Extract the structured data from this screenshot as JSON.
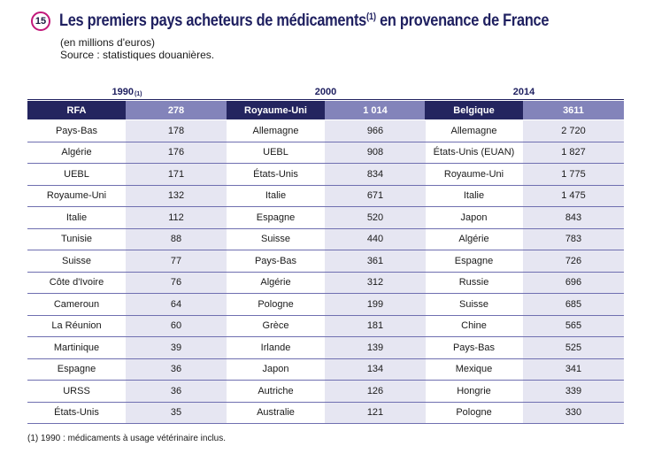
{
  "badge": "15",
  "title": {
    "main": "Les premiers pays acheteurs de médicaments",
    "sup": "(1)",
    "rest": " en provenance de France"
  },
  "subtitle": {
    "line1": "(en millions d'euros)",
    "line2": "Source : statistiques douanières."
  },
  "tables": [
    {
      "year": "1990",
      "year_sup": "(1)",
      "head": {
        "country": "RFA",
        "value": "278"
      },
      "rows": [
        {
          "country": "Pays-Bas",
          "value": "178"
        },
        {
          "country": "Algérie",
          "value": "176"
        },
        {
          "country": "UEBL",
          "value": "171"
        },
        {
          "country": "Royaume-Uni",
          "value": "132"
        },
        {
          "country": "Italie",
          "value": "112"
        },
        {
          "country": "Tunisie",
          "value": "88"
        },
        {
          "country": "Suisse",
          "value": "77"
        },
        {
          "country": "Côte d'Ivoire",
          "value": "76"
        },
        {
          "country": "Cameroun",
          "value": "64"
        },
        {
          "country": "La Réunion",
          "value": "60"
        },
        {
          "country": "Martinique",
          "value": "39"
        },
        {
          "country": "Espagne",
          "value": "36"
        },
        {
          "country": "URSS",
          "value": "36"
        },
        {
          "country": "États-Unis",
          "value": "35"
        }
      ]
    },
    {
      "year": "2000",
      "year_sup": "",
      "head": {
        "country": "Royaume-Uni",
        "value": "1 014"
      },
      "rows": [
        {
          "country": "Allemagne",
          "value": "966"
        },
        {
          "country": "UEBL",
          "value": "908"
        },
        {
          "country": "États-Unis",
          "value": "834"
        },
        {
          "country": "Italie",
          "value": "671"
        },
        {
          "country": "Espagne",
          "value": "520"
        },
        {
          "country": "Suisse",
          "value": "440"
        },
        {
          "country": "Pays-Bas",
          "value": "361"
        },
        {
          "country": "Algérie",
          "value": "312"
        },
        {
          "country": "Pologne",
          "value": "199"
        },
        {
          "country": "Grèce",
          "value": "181"
        },
        {
          "country": "Irlande",
          "value": "139"
        },
        {
          "country": "Japon",
          "value": "134"
        },
        {
          "country": "Autriche",
          "value": "126"
        },
        {
          "country": "Australie",
          "value": "121"
        }
      ]
    },
    {
      "year": "2014",
      "year_sup": "",
      "head": {
        "country": "Belgique",
        "value": "3611"
      },
      "rows": [
        {
          "country": "Allemagne",
          "value": "2 720"
        },
        {
          "country": "États-Unis (EUAN)",
          "value": "1 827"
        },
        {
          "country": "Royaume-Uni",
          "value": "1 775"
        },
        {
          "country": "Italie",
          "value": "1 475"
        },
        {
          "country": "Japon",
          "value": "843"
        },
        {
          "country": "Algérie",
          "value": "783"
        },
        {
          "country": "Espagne",
          "value": "726"
        },
        {
          "country": "Russie",
          "value": "696"
        },
        {
          "country": "Suisse",
          "value": "685"
        },
        {
          "country": "Chine",
          "value": "565"
        },
        {
          "country": "Pays-Bas",
          "value": "525"
        },
        {
          "country": "Mexique",
          "value": "341"
        },
        {
          "country": "Hongrie",
          "value": "339"
        },
        {
          "country": "Pologne",
          "value": "330"
        }
      ]
    }
  ],
  "footnote": "(1) 1990 : médicaments à usage vétérinaire inclus."
}
